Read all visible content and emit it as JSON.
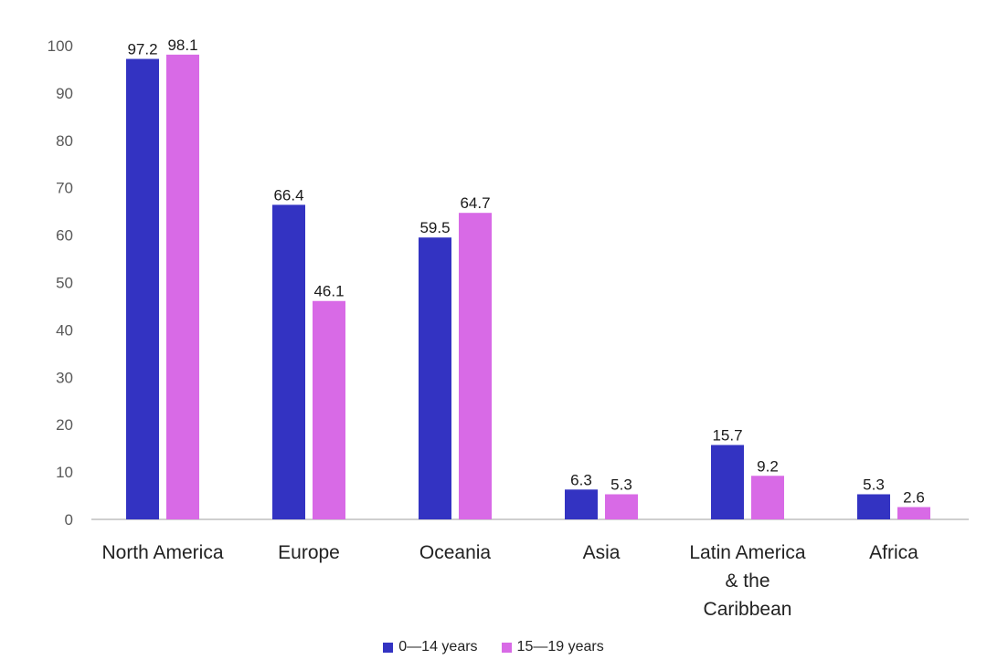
{
  "chart_data": {
    "type": "bar",
    "categories": [
      [
        "North America"
      ],
      [
        "Europe"
      ],
      [
        "Oceania"
      ],
      [
        "Asia"
      ],
      [
        "Latin America",
        "& the",
        "Caribbean"
      ],
      [
        "Africa"
      ]
    ],
    "series": [
      {
        "name": "0—14 years",
        "color": "#3333c2",
        "values": [
          97.2,
          66.4,
          59.5,
          6.3,
          15.7,
          5.3
        ]
      },
      {
        "name": "15—19 years",
        "color": "#d86ae6",
        "values": [
          98.1,
          46.1,
          64.7,
          5.3,
          9.2,
          2.6
        ]
      }
    ],
    "ylim": [
      0,
      100
    ],
    "yticks": [
      0,
      10,
      20,
      30,
      40,
      50,
      60,
      70,
      80,
      90,
      100
    ],
    "grid": false,
    "legend_position": "bottom"
  }
}
